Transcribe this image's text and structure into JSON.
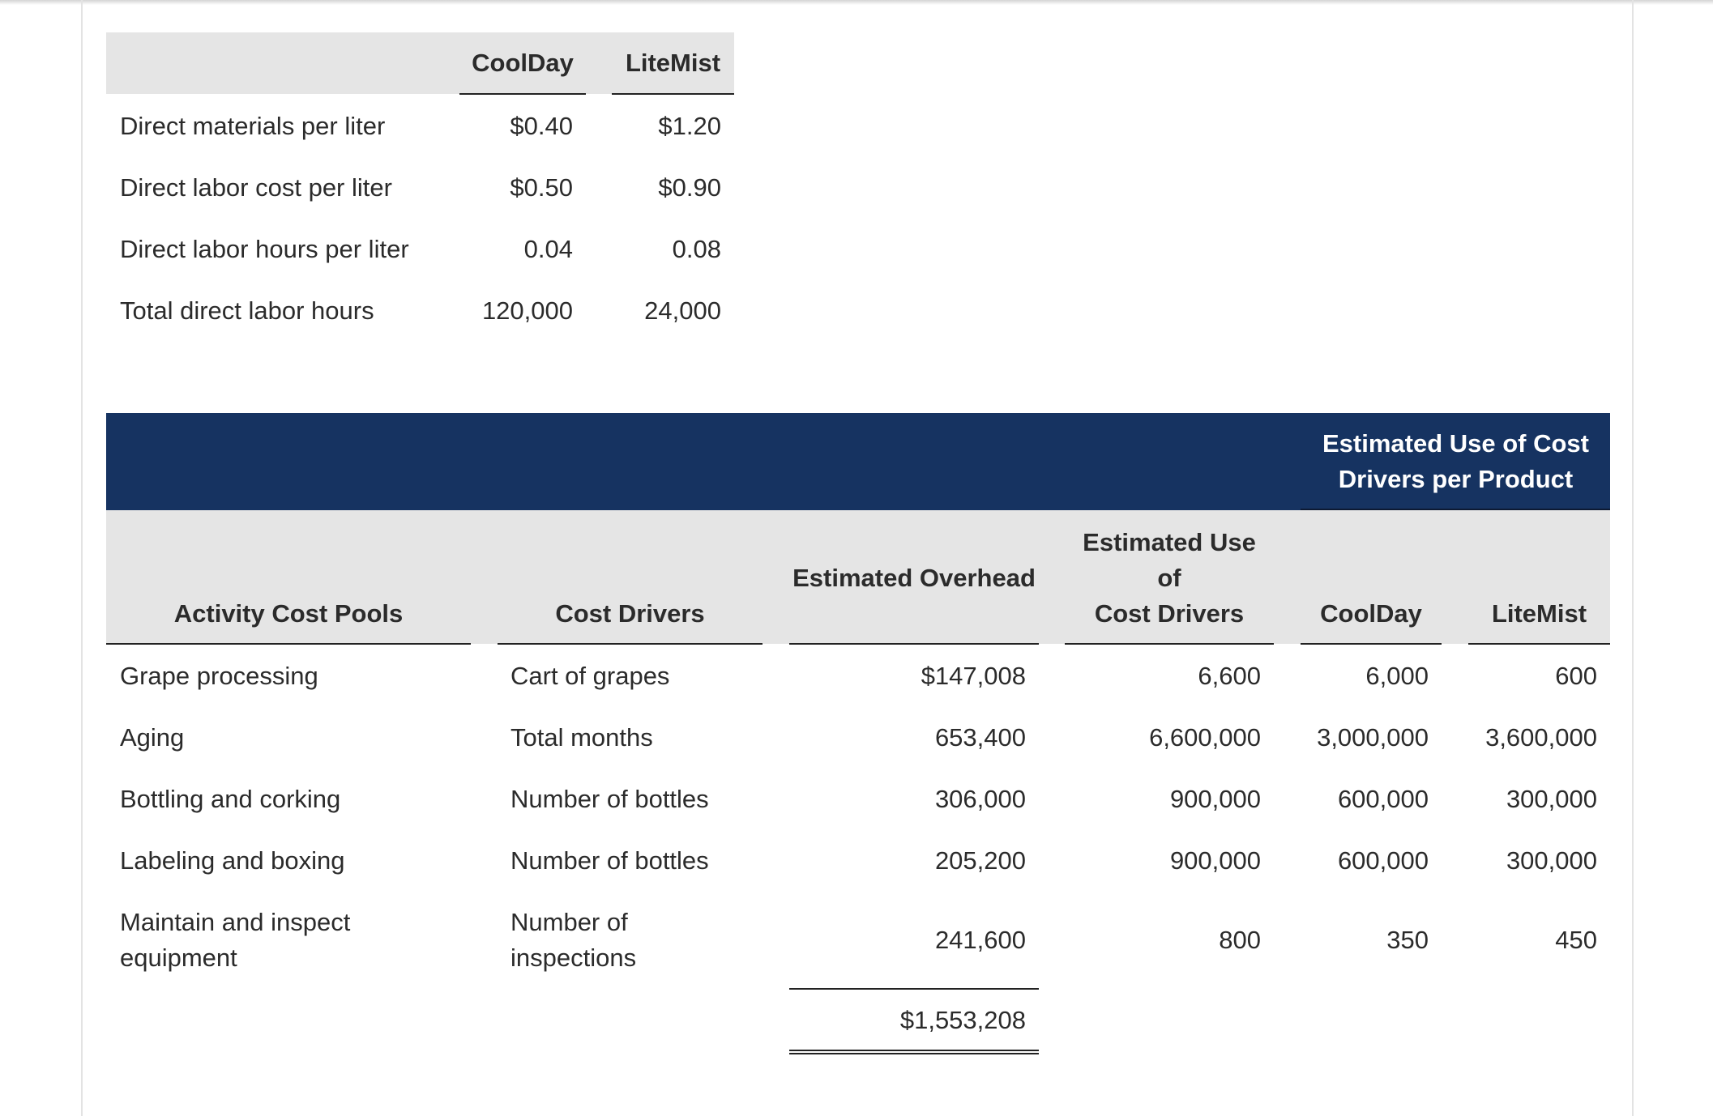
{
  "table1": {
    "columns": [
      "CoolDay",
      "LiteMist"
    ],
    "rows": [
      {
        "label": "Direct materials per liter",
        "coolday": "$0.40",
        "litemist": "$1.20"
      },
      {
        "label": "Direct labor cost per liter",
        "coolday": "$0.50",
        "litemist": "$0.90"
      },
      {
        "label": "Direct labor hours per liter",
        "coolday": "0.04",
        "litemist": "0.08"
      },
      {
        "label": "Total direct labor hours",
        "coolday": "120,000",
        "litemist": "24,000"
      }
    ]
  },
  "table2": {
    "band_header": "Estimated Use of Cost Drivers per Product",
    "headers": {
      "pools": "Activity Cost Pools",
      "drivers": "Cost Drivers",
      "overhead": "Estimated Overhead",
      "use_line1": "Estimated Use",
      "use_line2": "of",
      "use_line3": "Cost Drivers",
      "coolday": "CoolDay",
      "litemist": "LiteMist"
    },
    "rows": [
      {
        "pool": "Grape processing",
        "driver": "Cart of grapes",
        "overhead": "$147,008",
        "use": "6,600",
        "coolday": "6,000",
        "litemist": "600"
      },
      {
        "pool": "Aging",
        "driver": "Total months",
        "overhead": "653,400",
        "use": "6,600,000",
        "coolday": "3,000,000",
        "litemist": "3,600,000"
      },
      {
        "pool": "Bottling and corking",
        "driver": "Number of bottles",
        "overhead": "306,000",
        "use": "900,000",
        "coolday": "600,000",
        "litemist": "300,000"
      },
      {
        "pool": "Labeling and boxing",
        "driver": "Number of bottles",
        "overhead": "205,200",
        "use": "900,000",
        "coolday": "600,000",
        "litemist": "300,000"
      },
      {
        "pool": "Maintain and inspect equipment",
        "driver": "Number of inspections",
        "overhead": "241,600",
        "use": "800",
        "coolday": "350",
        "litemist": "450"
      }
    ],
    "total_overhead": "$1,553,208"
  }
}
